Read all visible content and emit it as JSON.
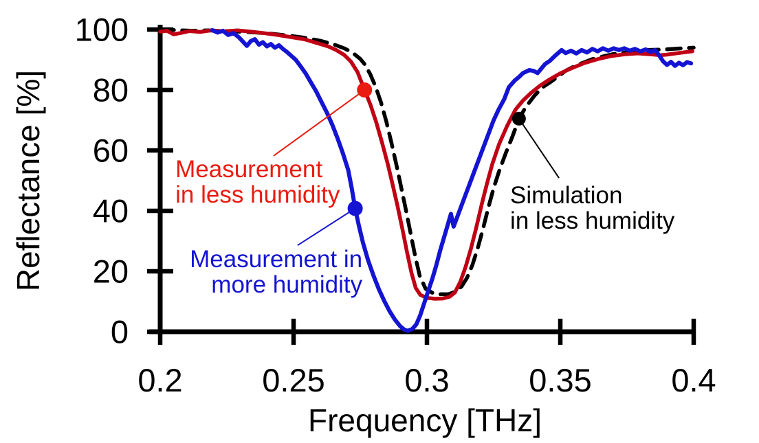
{
  "figure": {
    "background": "#ffffff",
    "axis_color": "#000000"
  },
  "chart_data": {
    "type": "line",
    "title": "",
    "xlabel": "Frequency [THz]",
    "ylabel": "Reflectance [%]",
    "xlim": [
      0.2,
      0.4
    ],
    "ylim": [
      0,
      100
    ],
    "grid": false,
    "legend_position": "inline-annotations",
    "xticks": [
      {
        "v": 0.2,
        "label": "0.2"
      },
      {
        "v": 0.25,
        "label": "0.25"
      },
      {
        "v": 0.3,
        "label": "0.3"
      },
      {
        "v": 0.35,
        "label": "0.35"
      },
      {
        "v": 0.4,
        "label": "0.4"
      }
    ],
    "yticks": [
      {
        "v": 0,
        "label": "0"
      },
      {
        "v": 20,
        "label": "20"
      },
      {
        "v": 40,
        "label": "40"
      },
      {
        "v": 60,
        "label": "60"
      },
      {
        "v": 80,
        "label": "80"
      },
      {
        "v": 100,
        "label": "100"
      }
    ],
    "series": [
      {
        "id": "simulation-less-humidity",
        "name": "Simulation in less humidity",
        "color": "#000000",
        "width": 5.5,
        "dash": "20 12",
        "points": [
          [
            0.2,
            100
          ],
          [
            0.206,
            99.8
          ],
          [
            0.212,
            99.6
          ],
          [
            0.218,
            99.7
          ],
          [
            0.224,
            99.5
          ],
          [
            0.23,
            99.3
          ],
          [
            0.236,
            99.0
          ],
          [
            0.242,
            98.6
          ],
          [
            0.248,
            98.0
          ],
          [
            0.254,
            97.3
          ],
          [
            0.26,
            96.3
          ],
          [
            0.265,
            95.1
          ],
          [
            0.269,
            93.8
          ],
          [
            0.272,
            92.4
          ],
          [
            0.275,
            90.3
          ],
          [
            0.2766,
            88.6
          ],
          [
            0.2787,
            85.3
          ],
          [
            0.2808,
            81.0
          ],
          [
            0.2828,
            75.8
          ],
          [
            0.2848,
            69.5
          ],
          [
            0.2867,
            62.5
          ],
          [
            0.2886,
            55.0
          ],
          [
            0.2904,
            47.5
          ],
          [
            0.2922,
            40.0
          ],
          [
            0.2939,
            32.5
          ],
          [
            0.2956,
            25.0
          ],
          [
            0.2973,
            18.5
          ],
          [
            0.2995,
            14.2
          ],
          [
            0.302,
            12.9
          ],
          [
            0.305,
            12.4
          ],
          [
            0.308,
            12.4
          ],
          [
            0.3105,
            13.2
          ],
          [
            0.313,
            15.0
          ],
          [
            0.315,
            17.8
          ],
          [
            0.317,
            22.0
          ],
          [
            0.319,
            27.5
          ],
          [
            0.321,
            34.0
          ],
          [
            0.323,
            41.0
          ],
          [
            0.325,
            47.5
          ],
          [
            0.3272,
            53.5
          ],
          [
            0.3295,
            59.0
          ],
          [
            0.332,
            64.5
          ],
          [
            0.3345,
            70.5
          ],
          [
            0.337,
            74.3
          ],
          [
            0.3402,
            78.0
          ],
          [
            0.3432,
            80.8
          ],
          [
            0.3461,
            82.5
          ],
          [
            0.35,
            85.0
          ],
          [
            0.3521,
            86.4
          ],
          [
            0.3552,
            87.8
          ],
          [
            0.3582,
            88.9
          ],
          [
            0.362,
            90.2
          ],
          [
            0.366,
            91.1
          ],
          [
            0.37,
            91.9
          ],
          [
            0.3737,
            92.3
          ],
          [
            0.378,
            92.9
          ],
          [
            0.3804,
            93.2
          ],
          [
            0.385,
            93.3
          ],
          [
            0.3892,
            93.4
          ],
          [
            0.394,
            93.7
          ],
          [
            0.4,
            94.0
          ]
        ]
      },
      {
        "id": "measurement-less-humidity",
        "name": "Measurement in less humidity",
        "color": "#c00014",
        "width": 5.5,
        "dash": "",
        "points": [
          [
            0.2,
            99.3
          ],
          [
            0.2025,
            99.6
          ],
          [
            0.205,
            98.4
          ],
          [
            0.208,
            98.9
          ],
          [
            0.211,
            99.5
          ],
          [
            0.215,
            99.2
          ],
          [
            0.219,
            99.7
          ],
          [
            0.224,
            99.4
          ],
          [
            0.229,
            99.7
          ],
          [
            0.234,
            99.3
          ],
          [
            0.239,
            98.8
          ],
          [
            0.244,
            98.2
          ],
          [
            0.249,
            97.5
          ],
          [
            0.254,
            96.8
          ],
          [
            0.2585,
            95.6
          ],
          [
            0.263,
            94.4
          ],
          [
            0.266,
            93.2
          ],
          [
            0.269,
            91.6
          ],
          [
            0.2715,
            89.4
          ],
          [
            0.274,
            85.9
          ],
          [
            0.2766,
            80.0
          ],
          [
            0.2788,
            75.2
          ],
          [
            0.281,
            69.3
          ],
          [
            0.2832,
            62.5
          ],
          [
            0.2853,
            55.5
          ],
          [
            0.2872,
            48.5
          ],
          [
            0.289,
            41.5
          ],
          [
            0.2908,
            34.0
          ],
          [
            0.2925,
            26.5
          ],
          [
            0.2942,
            19.5
          ],
          [
            0.2958,
            14.5
          ],
          [
            0.2975,
            12.2
          ],
          [
            0.3,
            11.2
          ],
          [
            0.303,
            10.9
          ],
          [
            0.306,
            11.0
          ],
          [
            0.3085,
            11.6
          ],
          [
            0.3105,
            13.0
          ],
          [
            0.3125,
            16.5
          ],
          [
            0.3145,
            21.5
          ],
          [
            0.3165,
            27.5
          ],
          [
            0.3185,
            34.5
          ],
          [
            0.3205,
            42.0
          ],
          [
            0.3225,
            49.0
          ],
          [
            0.3245,
            55.5
          ],
          [
            0.327,
            62.0
          ],
          [
            0.33,
            68.0
          ],
          [
            0.3332,
            73.5
          ],
          [
            0.336,
            76.5
          ],
          [
            0.339,
            79.0
          ],
          [
            0.3425,
            81.5
          ],
          [
            0.346,
            83.5
          ],
          [
            0.35,
            85.5
          ],
          [
            0.3545,
            87.3
          ],
          [
            0.359,
            88.9
          ],
          [
            0.364,
            90.2
          ],
          [
            0.369,
            91.2
          ],
          [
            0.374,
            91.8
          ],
          [
            0.379,
            92.1
          ],
          [
            0.384,
            91.8
          ],
          [
            0.3875,
            91.5
          ],
          [
            0.39,
            91.7
          ],
          [
            0.3925,
            92.0
          ],
          [
            0.396,
            92.4
          ],
          [
            0.3995,
            92.8
          ]
        ]
      },
      {
        "id": "measurement-more-humidity",
        "name": "Measurement in more humidity",
        "color": "#1414d2",
        "width": 6,
        "dash": "",
        "points": [
          [
            0.2195,
            99.8
          ],
          [
            0.2215,
            99.0
          ],
          [
            0.2235,
            99.6
          ],
          [
            0.2255,
            98.2
          ],
          [
            0.2275,
            98.8
          ],
          [
            0.2295,
            97.4
          ],
          [
            0.231,
            96.0
          ],
          [
            0.2325,
            94.6
          ],
          [
            0.234,
            96.2
          ],
          [
            0.2355,
            96.8
          ],
          [
            0.237,
            95.0
          ],
          [
            0.2385,
            95.8
          ],
          [
            0.24,
            94.4
          ],
          [
            0.2415,
            95.2
          ],
          [
            0.243,
            94.0
          ],
          [
            0.2445,
            94.8
          ],
          [
            0.246,
            93.6
          ],
          [
            0.2475,
            92.6
          ],
          [
            0.249,
            91.4
          ],
          [
            0.2508,
            90.0
          ],
          [
            0.2525,
            88.0
          ],
          [
            0.2545,
            85.5
          ],
          [
            0.2565,
            82.5
          ],
          [
            0.2585,
            79.5
          ],
          [
            0.2605,
            76.0
          ],
          [
            0.2625,
            72.5
          ],
          [
            0.2645,
            68.5
          ],
          [
            0.2665,
            64.0
          ],
          [
            0.2685,
            59.0
          ],
          [
            0.2705,
            53.5
          ],
          [
            0.2718,
            47.5
          ],
          [
            0.2731,
            40.8
          ],
          [
            0.2745,
            35.0
          ],
          [
            0.276,
            29.5
          ],
          [
            0.278,
            23.5
          ],
          [
            0.28,
            18.5
          ],
          [
            0.282,
            14.0
          ],
          [
            0.284,
            10.2
          ],
          [
            0.286,
            6.8
          ],
          [
            0.288,
            4.0
          ],
          [
            0.29,
            1.8
          ],
          [
            0.2915,
            0.7
          ],
          [
            0.2928,
            0.3
          ],
          [
            0.2945,
            0.9
          ],
          [
            0.296,
            2.4
          ],
          [
            0.2975,
            5.5
          ],
          [
            0.299,
            9.5
          ],
          [
            0.3005,
            13.5
          ],
          [
            0.302,
            17.5
          ],
          [
            0.3035,
            22.0
          ],
          [
            0.305,
            27.0
          ],
          [
            0.307,
            33.0
          ],
          [
            0.309,
            39.0
          ],
          [
            0.31,
            34.8
          ],
          [
            0.312,
            39.5
          ],
          [
            0.314,
            44.2
          ],
          [
            0.316,
            48.9
          ],
          [
            0.318,
            53.6
          ],
          [
            0.32,
            58.3
          ],
          [
            0.322,
            63.0
          ],
          [
            0.3229,
            65.1
          ],
          [
            0.325,
            70.0
          ],
          [
            0.3268,
            73.4
          ],
          [
            0.329,
            77.0
          ],
          [
            0.3307,
            80.9
          ],
          [
            0.333,
            83.2
          ],
          [
            0.3345,
            84.3
          ],
          [
            0.336,
            85.6
          ],
          [
            0.3384,
            86.6
          ],
          [
            0.34,
            86.3
          ],
          [
            0.3415,
            85.6
          ],
          [
            0.343,
            87.2
          ],
          [
            0.3443,
            88.6
          ],
          [
            0.346,
            89.6
          ],
          [
            0.348,
            91.3
          ],
          [
            0.3505,
            93.2
          ],
          [
            0.352,
            92.2
          ],
          [
            0.354,
            93.0
          ],
          [
            0.356,
            92.1
          ],
          [
            0.358,
            93.2
          ],
          [
            0.36,
            92.4
          ],
          [
            0.362,
            93.6
          ],
          [
            0.364,
            92.8
          ],
          [
            0.366,
            93.8
          ],
          [
            0.368,
            93.0
          ],
          [
            0.37,
            93.8
          ],
          [
            0.372,
            93.2
          ],
          [
            0.374,
            93.8
          ],
          [
            0.376,
            93.0
          ],
          [
            0.378,
            93.6
          ],
          [
            0.38,
            92.8
          ],
          [
            0.382,
            93.4
          ],
          [
            0.384,
            92.6
          ],
          [
            0.3855,
            93.2
          ],
          [
            0.387,
            91.5
          ],
          [
            0.3885,
            89.5
          ],
          [
            0.39,
            88.3
          ],
          [
            0.3915,
            89.3
          ],
          [
            0.393,
            88.0
          ],
          [
            0.3945,
            89.0
          ],
          [
            0.396,
            88.2
          ],
          [
            0.3975,
            89.2
          ],
          [
            0.399,
            88.8
          ]
        ]
      }
    ],
    "annotations": [
      {
        "id": "measurement-less-humidity",
        "lines": [
          "Measurement",
          "in less humidity"
        ],
        "color": "#ea1b10",
        "align": "start",
        "text_f": 0.2057,
        "text_r": 51.1,
        "dot_f": 0.2766,
        "dot_r": 80.0,
        "dot_radius": 11,
        "leader_f": 0.2425,
        "leader_r": 58.2
      },
      {
        "id": "measurement-more-humidity",
        "lines": [
          "Measurement in",
          "more humidity"
        ],
        "color": "#1414d2",
        "align": "end",
        "text_f": 0.2758,
        "text_r": 21.4,
        "dot_f": 0.2731,
        "dot_r": 40.8,
        "dot_radius": 11,
        "leader_f": 0.2515,
        "leader_r": 28.6
      },
      {
        "id": "simulation-less-humidity",
        "lines": [
          "Simulation",
          "in less humidity"
        ],
        "color": "#000000",
        "align": "start",
        "text_f": 0.3312,
        "text_r": 42.5,
        "dot_f": 0.3345,
        "dot_r": 70.5,
        "dot_radius": 10,
        "leader_f": 0.3495,
        "leader_r": 50.9
      }
    ]
  }
}
